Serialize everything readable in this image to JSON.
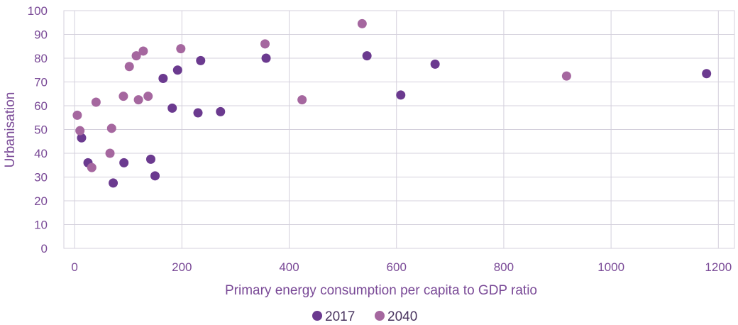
{
  "chart_data": {
    "type": "scatter",
    "xlabel": "Primary energy consumption per capita to GDP ratio",
    "ylabel": "Urbanisation",
    "xlim": [
      -20,
      1230
    ],
    "ylim": [
      0,
      100
    ],
    "x_ticks": [
      0,
      200,
      400,
      600,
      800,
      1000,
      1200
    ],
    "y_ticks": [
      0,
      10,
      20,
      30,
      40,
      50,
      60,
      70,
      80,
      90,
      100
    ],
    "grid": true,
    "legend_position": "bottom",
    "series": [
      {
        "name": "2017",
        "color": "#6b3a8f",
        "points": [
          {
            "x": 13,
            "y": 46.5
          },
          {
            "x": 25,
            "y": 36
          },
          {
            "x": 72,
            "y": 27.5
          },
          {
            "x": 92,
            "y": 36
          },
          {
            "x": 142,
            "y": 37.5
          },
          {
            "x": 150,
            "y": 30.5
          },
          {
            "x": 165,
            "y": 71.5
          },
          {
            "x": 182,
            "y": 59
          },
          {
            "x": 192,
            "y": 75
          },
          {
            "x": 230,
            "y": 57
          },
          {
            "x": 235,
            "y": 79
          },
          {
            "x": 272,
            "y": 57.5
          },
          {
            "x": 357,
            "y": 80
          },
          {
            "x": 545,
            "y": 81
          },
          {
            "x": 608,
            "y": 64.5
          },
          {
            "x": 672,
            "y": 77.5
          },
          {
            "x": 1178,
            "y": 73.5
          }
        ]
      },
      {
        "name": "2040",
        "color": "#a5679f",
        "points": [
          {
            "x": 5,
            "y": 56
          },
          {
            "x": 10,
            "y": 49.5
          },
          {
            "x": 32,
            "y": 34
          },
          {
            "x": 40,
            "y": 61.5
          },
          {
            "x": 66,
            "y": 40
          },
          {
            "x": 69,
            "y": 50.5
          },
          {
            "x": 91,
            "y": 64
          },
          {
            "x": 102,
            "y": 76.5
          },
          {
            "x": 115,
            "y": 81
          },
          {
            "x": 119,
            "y": 62.5
          },
          {
            "x": 128,
            "y": 83
          },
          {
            "x": 137,
            "y": 64
          },
          {
            "x": 198,
            "y": 84
          },
          {
            "x": 355,
            "y": 86
          },
          {
            "x": 424,
            "y": 62.5
          },
          {
            "x": 536,
            "y": 94.5
          },
          {
            "x": 917,
            "y": 72.5
          }
        ]
      }
    ]
  }
}
